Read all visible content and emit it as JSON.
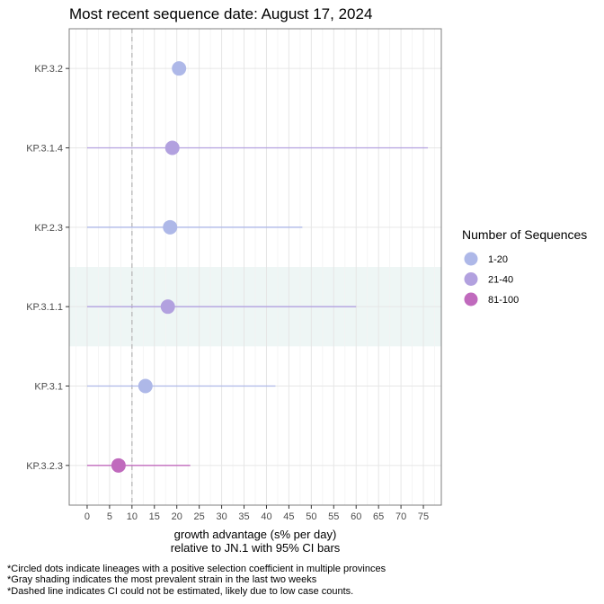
{
  "chart_data": {
    "type": "scatter",
    "title": "Most recent sequence date: August 17, 2024",
    "xlabel": "growth advantage (s% per day)",
    "xlabel2": "relative to  JN.1  with 95% CI bars",
    "xlim": [
      -4,
      79
    ],
    "xticks": [
      0,
      5,
      10,
      15,
      20,
      25,
      30,
      35,
      40,
      45,
      50,
      55,
      60,
      65,
      70,
      75
    ],
    "categories": [
      "KP.3.2",
      "KP.3.1.4",
      "KP.2.3",
      "KP.3.1.1",
      "KP.3.1",
      "KP.3.2.3"
    ],
    "points": [
      {
        "lineage": "KP.3.2",
        "estimate": 20.5,
        "ci": null,
        "group": "1-20",
        "shaded": false
      },
      {
        "lineage": "KP.3.1.4",
        "estimate": 19,
        "ci": [
          0,
          76
        ],
        "group": "21-40",
        "shaded": false
      },
      {
        "lineage": "KP.2.3",
        "estimate": 18.5,
        "ci": [
          0,
          48
        ],
        "group": "1-20",
        "shaded": false
      },
      {
        "lineage": "KP.3.1.1",
        "estimate": 18,
        "ci": [
          0,
          60
        ],
        "group": "21-40",
        "shaded": true
      },
      {
        "lineage": "KP.3.1",
        "estimate": 13,
        "ci": [
          0,
          42
        ],
        "group": "1-20",
        "shaded": false
      },
      {
        "lineage": "KP.3.2.3",
        "estimate": 7,
        "ci": [
          0,
          23
        ],
        "group": "81-100",
        "shaded": false
      }
    ],
    "dashed_line_x": 10,
    "grid": true,
    "legend": {
      "title": "Number of Sequences",
      "position": "right",
      "items": [
        {
          "label": "1-20",
          "color": "#aeb8e8"
        },
        {
          "label": "21-40",
          "color": "#b2a1df"
        },
        {
          "label": "81-100",
          "color": "#c06abd"
        }
      ]
    },
    "shade_color": "#eef6f5",
    "footnotes": [
      "*Circled dots indicate lineages with a positive selection coefficient in multiple provinces",
      "*Gray shading indicates the most prevalent strain in the last two weeks",
      "*Dashed line indicates CI could not be estimated, likely due to low case counts."
    ]
  }
}
